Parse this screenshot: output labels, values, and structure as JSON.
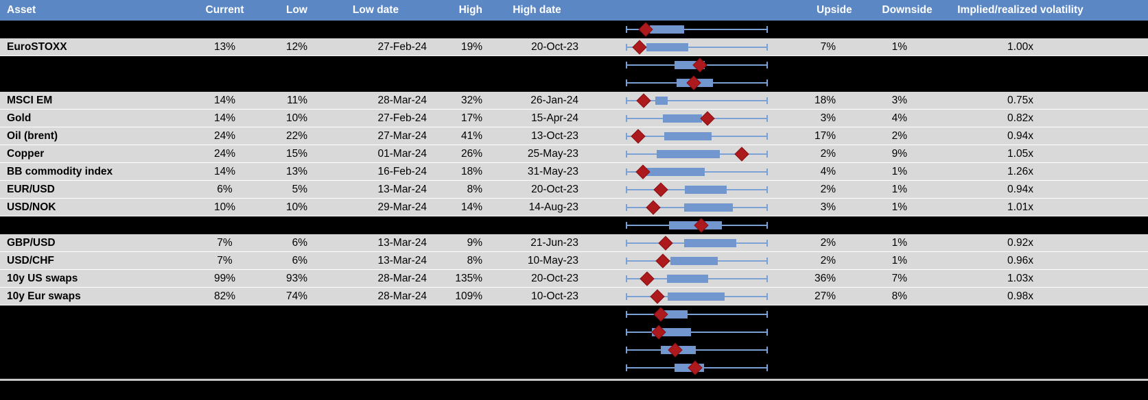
{
  "colors": {
    "header_bg": "#5b87c4",
    "header_text": "#ffffff",
    "row_light": "#d9d9d9",
    "row_dark": "#000000",
    "box_fill": "#7296ce",
    "whisker": "#7aa0d4",
    "marker": "#ad1a1d",
    "separator": "#c9c9c9"
  },
  "chart_data": {
    "type": "table",
    "title": "Implied volatility by asset with range box plots",
    "columns": [
      "Asset",
      "Current",
      "Low",
      "Low date",
      "High",
      "High date",
      "",
      "Upside",
      "Downside",
      "Implied/realized volatility"
    ],
    "boxplot_note": "Each row shows a horizontal box plot on a hidden axis: whiskers span the full range (0-100% of plot width), blue box = inner range, red diamond = current level. Positions recorded as percent of whisker span.",
    "whisker_span_pct": [
      0,
      100
    ],
    "rows": [
      {
        "kind": "dark",
        "asset": "",
        "current": "",
        "low": "",
        "low_date": "",
        "high": "",
        "high_date": "",
        "upside": "",
        "downside": "",
        "implied_realized": "",
        "box": {
          "low_pct": 16.6,
          "high_pct": 41.0,
          "marker_pct": 13.7
        }
      },
      {
        "kind": "light",
        "asset": "EuroSTOXX",
        "current": "13%",
        "low": "12%",
        "low_date": "27-Feb-24",
        "high": "19%",
        "high_date": "20-Oct-23",
        "upside": "7%",
        "downside": "1%",
        "implied_realized": "1.00x",
        "box": {
          "low_pct": 14.1,
          "high_pct": 43.9,
          "marker_pct": 9.3
        }
      },
      {
        "kind": "dark",
        "asset": "",
        "current": "",
        "low": "",
        "low_date": "",
        "high": "",
        "high_date": "",
        "upside": "",
        "downside": "",
        "implied_realized": "",
        "box": {
          "low_pct": 34.1,
          "high_pct": 55.6,
          "marker_pct": 52.2
        }
      },
      {
        "kind": "dark",
        "asset": "",
        "current": "",
        "low": "",
        "low_date": "",
        "high": "",
        "high_date": "",
        "upside": "",
        "downside": "",
        "implied_realized": "",
        "box": {
          "low_pct": 35.6,
          "high_pct": 61.5,
          "marker_pct": 47.8
        }
      },
      {
        "kind": "light",
        "asset": "MSCI EM",
        "current": "14%",
        "low": "11%",
        "low_date": "28-Mar-24",
        "high": "32%",
        "high_date": "26-Jan-24",
        "upside": "18%",
        "downside": "3%",
        "implied_realized": "0.75x",
        "box": {
          "low_pct": 20.5,
          "high_pct": 29.3,
          "marker_pct": 12.2
        }
      },
      {
        "kind": "light",
        "asset": "Gold",
        "current": "14%",
        "low": "10%",
        "low_date": "27-Feb-24",
        "high": "17%",
        "high_date": "15-Apr-24",
        "upside": "3%",
        "downside": "4%",
        "implied_realized": "0.82x",
        "box": {
          "low_pct": 25.9,
          "high_pct": 53.7,
          "marker_pct": 57.6
        }
      },
      {
        "kind": "light",
        "asset": "Oil (brent)",
        "current": "24%",
        "low": "22%",
        "low_date": "27-Mar-24",
        "high": "41%",
        "high_date": "13-Oct-23",
        "upside": "17%",
        "downside": "2%",
        "implied_realized": "0.94x",
        "box": {
          "low_pct": 26.8,
          "high_pct": 60.5,
          "marker_pct": 8.3
        }
      },
      {
        "kind": "light",
        "asset": "Copper",
        "current": "24%",
        "low": "15%",
        "low_date": "01-Mar-24",
        "high": "26%",
        "high_date": "25-May-23",
        "upside": "2%",
        "downside": "9%",
        "implied_realized": "1.05x",
        "box": {
          "low_pct": 21.5,
          "high_pct": 66.3,
          "marker_pct": 82.0
        }
      },
      {
        "kind": "light",
        "asset": "BB commodity index",
        "current": "14%",
        "low": "13%",
        "low_date": "16-Feb-24",
        "high": "18%",
        "high_date": "31-May-23",
        "upside": "4%",
        "downside": "1%",
        "implied_realized": "1.26x",
        "box": {
          "low_pct": 13.2,
          "high_pct": 55.6,
          "marker_pct": 11.7
        }
      },
      {
        "kind": "light",
        "asset": "EUR/USD",
        "current": "6%",
        "low": "5%",
        "low_date": "13-Mar-24",
        "high": "8%",
        "high_date": "20-Oct-23",
        "upside": "2%",
        "downside": "1%",
        "implied_realized": "0.94x",
        "box": {
          "low_pct": 41.5,
          "high_pct": 71.2,
          "marker_pct": 24.4
        }
      },
      {
        "kind": "light",
        "asset": "USD/NOK",
        "current": "10%",
        "low": "10%",
        "low_date": "29-Mar-24",
        "high": "14%",
        "high_date": "14-Aug-23",
        "upside": "3%",
        "downside": "1%",
        "implied_realized": "1.01x",
        "box": {
          "low_pct": 41.0,
          "high_pct": 75.6,
          "marker_pct": 19.0
        }
      },
      {
        "kind": "dark",
        "asset": "",
        "current": "",
        "low": "",
        "low_date": "",
        "high": "",
        "high_date": "",
        "upside": "",
        "downside": "",
        "implied_realized": "",
        "box": {
          "low_pct": 30.2,
          "high_pct": 67.8,
          "marker_pct": 53.2
        }
      },
      {
        "kind": "light",
        "asset": "GBP/USD",
        "current": "7%",
        "low": "6%",
        "low_date": "13-Mar-24",
        "high": "9%",
        "high_date": "21-Jun-23",
        "upside": "2%",
        "downside": "1%",
        "implied_realized": "0.92x",
        "box": {
          "low_pct": 41.0,
          "high_pct": 78.0,
          "marker_pct": 27.8
        }
      },
      {
        "kind": "light",
        "asset": "USD/CHF",
        "current": "7%",
        "low": "6%",
        "low_date": "13-Mar-24",
        "high": "8%",
        "high_date": "10-May-23",
        "upside": "2%",
        "downside": "1%",
        "implied_realized": "0.96x",
        "box": {
          "low_pct": 31.2,
          "high_pct": 64.9,
          "marker_pct": 25.9
        }
      },
      {
        "kind": "light",
        "asset": "10y US swaps",
        "current": "99%",
        "low": "93%",
        "low_date": "28-Mar-24",
        "high": "135%",
        "high_date": "20-Oct-23",
        "upside": "36%",
        "downside": "7%",
        "implied_realized": "1.03x",
        "box": {
          "low_pct": 28.8,
          "high_pct": 58.0,
          "marker_pct": 14.6
        }
      },
      {
        "kind": "light",
        "asset": "10y Eur swaps",
        "current": "82%",
        "low": "74%",
        "low_date": "28-Mar-24",
        "high": "109%",
        "high_date": "10-Oct-23",
        "upside": "27%",
        "downside": "8%",
        "implied_realized": "0.98x",
        "box": {
          "low_pct": 29.3,
          "high_pct": 69.8,
          "marker_pct": 22.0
        }
      },
      {
        "kind": "dark",
        "asset": "",
        "current": "",
        "low": "",
        "low_date": "",
        "high": "",
        "high_date": "",
        "upside": "",
        "downside": "",
        "implied_realized": "",
        "box": {
          "low_pct": 25.4,
          "high_pct": 43.4,
          "marker_pct": 24.4
        }
      },
      {
        "kind": "dark",
        "asset": "",
        "current": "",
        "low": "",
        "low_date": "",
        "high": "",
        "high_date": "",
        "upside": "",
        "downside": "",
        "implied_realized": "",
        "box": {
          "low_pct": 18.0,
          "high_pct": 45.9,
          "marker_pct": 22.9
        }
      },
      {
        "kind": "dark",
        "asset": "",
        "current": "",
        "low": "",
        "low_date": "",
        "high": "",
        "high_date": "",
        "upside": "",
        "downside": "",
        "implied_realized": "",
        "box": {
          "low_pct": 24.4,
          "high_pct": 49.3,
          "marker_pct": 34.6
        }
      },
      {
        "kind": "dark",
        "asset": "",
        "current": "",
        "low": "",
        "low_date": "",
        "high": "",
        "high_date": "",
        "upside": "",
        "downside": "",
        "implied_realized": "",
        "box": {
          "low_pct": 34.1,
          "high_pct": 55.1,
          "marker_pct": 48.8
        }
      }
    ]
  }
}
